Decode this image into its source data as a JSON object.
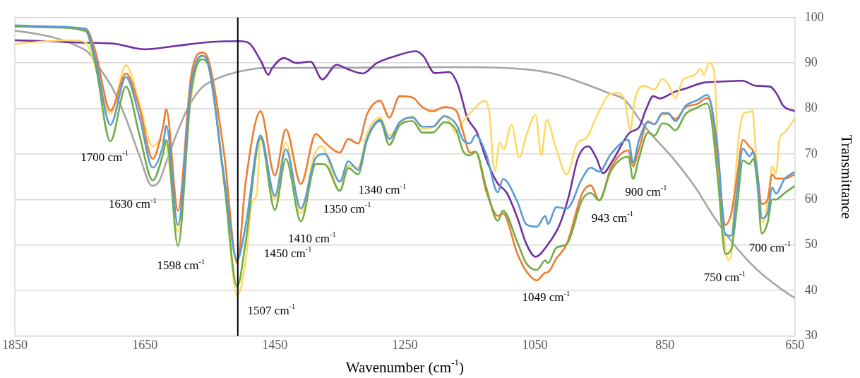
{
  "chart_data": {
    "type": "line",
    "xlabel": "Wavenumber (cm$^{-1}$)",
    "ylabel": "Transmittance",
    "xlim": [
      1850,
      650
    ],
    "xticks": [
      1850,
      1650,
      1450,
      1250,
      1050,
      850,
      650
    ],
    "ylim": [
      30,
      100
    ],
    "yticks": [
      30,
      40,
      50,
      60,
      70,
      80,
      90,
      100
    ],
    "grid": "y",
    "marker": "none",
    "line_style": "solid",
    "ref_lines": [
      {
        "axis": "x",
        "value": 1507,
        "color": "#000000"
      }
    ],
    "annotations": [
      "1700 cm$^{-1}$",
      "1630 cm$^{-1}$",
      "1598 cm$^{-1}$",
      "1507 cm$^{-1}$",
      "1450 cm$^{-1}$",
      "1410 cm$^{-1}$",
      "1350 cm$^{-1}$",
      "1340 cm$^{-1}$",
      "1049 cm$^{-1}$",
      "943 cm$^{-1}$",
      "900 cm$^{-1}$",
      "750 cm$^{-1}$",
      "700 cm$^{-1}$"
    ],
    "series": [
      {
        "color": "#a5a5a5",
        "x": [
          1850,
          1816,
          1780,
          1752,
          1737,
          1715,
          1698,
          1679,
          1658,
          1639,
          1628,
          1614,
          1600,
          1582,
          1563,
          1546,
          1528,
          1495,
          1470,
          1300,
          1171,
          1063,
          1017,
          973,
          937,
          912,
          887,
          872,
          836,
          800,
          782,
          746,
          710,
          674,
          650
        ],
        "values": [
          97.1,
          96.4,
          95.2,
          93.6,
          92.3,
          87.9,
          84,
          77.8,
          69.5,
          63,
          64,
          69.5,
          74.8,
          80.6,
          84.5,
          86.1,
          87.2,
          88.4,
          88.9,
          89,
          89.1,
          88.6,
          87.5,
          85.4,
          83.4,
          81.9,
          77.2,
          74.5,
          68.8,
          62,
          57.8,
          50.5,
          44.8,
          40.6,
          38.3
        ]
      },
      {
        "color": "#7030a0",
        "x": [
          1850,
          1800,
          1750,
          1700,
          1650,
          1600,
          1550,
          1505,
          1490,
          1471,
          1460,
          1455,
          1436,
          1417,
          1395,
          1377,
          1355,
          1337,
          1315,
          1293,
          1265,
          1233,
          1222,
          1204,
          1182,
          1169,
          1160,
          1155,
          1139,
          1125,
          1108,
          1093,
          1077,
          1063,
          1049,
          1031,
          1012,
          998,
          984,
          968,
          955,
          945,
          931,
          904,
          890,
          879,
          868,
          858,
          836,
          818,
          790,
          764,
          731,
          710,
          688,
          677,
          668,
          650
        ],
        "values": [
          95,
          94.8,
          94.5,
          94.3,
          93,
          93.8,
          94.6,
          94.8,
          94.4,
          90.3,
          87.4,
          88.7,
          91.1,
          90,
          90.3,
          86.4,
          89.6,
          88.6,
          87.7,
          90,
          91.5,
          92.6,
          91.6,
          87.8,
          88,
          85.4,
          81,
          78.3,
          74.7,
          68.9,
          63.7,
          61.4,
          56,
          50.2,
          47.4,
          49.9,
          54.4,
          60.6,
          69,
          71.7,
          69,
          65.8,
          68.4,
          74.7,
          75.8,
          79.8,
          82.7,
          82.2,
          83.6,
          84.4,
          85.7,
          85.9,
          86.1,
          85,
          84.8,
          83,
          80.6,
          79.4
        ]
      },
      {
        "color": "#ffd966",
        "x": [
          1850,
          1800,
          1760,
          1741,
          1730,
          1703,
          1679,
          1658,
          1638,
          1625,
          1617,
          1599,
          1579,
          1562,
          1553,
          1528,
          1508,
          1495,
          1485,
          1478,
          1472,
          1450,
          1433,
          1410,
          1390,
          1378,
          1350,
          1337,
          1322,
          1308,
          1288,
          1274,
          1258,
          1238,
          1223,
          1207,
          1189,
          1171,
          1160,
          1141,
          1128,
          1120,
          1112,
          1104,
          1098,
          1086,
          1074,
          1063,
          1049,
          1040,
          1032,
          1017,
          1001,
          985,
          970,
          955,
          936,
          925,
          912,
          903,
          897,
          883,
          866,
          854,
          845,
          834,
          823,
          804,
          795,
          790,
          782,
          774,
          768,
          760,
          753,
          748,
          742,
          735,
          728,
          720,
          715,
          712,
          704,
          699,
          690,
          685,
          679,
          674,
          666,
          650
        ],
        "values": [
          94.2,
          94.8,
          95,
          94.5,
          91,
          78.8,
          89.5,
          81,
          71.7,
          73,
          72,
          53,
          82,
          91.5,
          90.5,
          64,
          38.8,
          46.6,
          59.5,
          61,
          73.6,
          60,
          72.5,
          56.9,
          69.6,
          71.7,
          61.9,
          67.5,
          67,
          74.5,
          78,
          74.1,
          76.5,
          78.3,
          75.5,
          76,
          78.5,
          74.7,
          77.2,
          80.3,
          81.7,
          79,
          66.1,
          72.5,
          71,
          76.4,
          69.2,
          74.1,
          78.6,
          69.7,
          77.5,
          71,
          65.5,
          72.3,
          73.6,
          78.3,
          83,
          83.4,
          82,
          75.2,
          81.4,
          85,
          84.2,
          86.5,
          85.4,
          82.3,
          86.1,
          87.4,
          88.7,
          87.4,
          90,
          88,
          69,
          53.6,
          46.7,
          47.5,
          63.7,
          75.2,
          79,
          79.2,
          79.5,
          74,
          60.5,
          54.9,
          61.4,
          67.3,
          65.7,
          73.1,
          74.7,
          77.8
        ]
      },
      {
        "color": "#ed7d31",
        "x": [
          1850,
          1790,
          1741,
          1726,
          1703,
          1679,
          1658,
          1638,
          1622,
          1617,
          1599,
          1579,
          1562,
          1553,
          1528,
          1508,
          1495,
          1472,
          1450,
          1433,
          1410,
          1387,
          1373,
          1350,
          1337,
          1322,
          1308,
          1288,
          1274,
          1258,
          1238,
          1223,
          1207,
          1189,
          1171,
          1160,
          1150,
          1141,
          1125,
          1107,
          1099,
          1077,
          1063,
          1047,
          1034,
          1030,
          1017,
          1001,
          977,
          964,
          951,
          933,
          906,
          899,
          890,
          876,
          866,
          854,
          845,
          834,
          818,
          800,
          785,
          779,
          768,
          757,
          748,
          739,
          730,
          720,
          714,
          708,
          701,
          692,
          685,
          679,
          666,
          650
        ],
        "values": [
          98,
          null,
          97.5,
          92.5,
          79.5,
          87.7,
          80,
          68.9,
          76,
          79.8,
          57.5,
          87,
          92.3,
          91,
          70,
          46,
          63.7,
          79.4,
          65.3,
          75.4,
          63.4,
          74.4,
          72.5,
          70.3,
          73.3,
          72.3,
          78.8,
          81.7,
          78,
          82.7,
          82.4,
          80.3,
          79.4,
          80.3,
          79.5,
          74.7,
          70.3,
          70.5,
          61.9,
          56.4,
          56.9,
          48.1,
          44.2,
          42.2,
          43.9,
          44,
          47,
          50.2,
          61.4,
          63.1,
          59.8,
          66.9,
          70.8,
          67.3,
          71,
          77.2,
          76.5,
          78.8,
          78.8,
          77.7,
          80.3,
          81,
          82.3,
          81,
          68,
          54.4,
          56.9,
          65,
          73.1,
          71.6,
          70.5,
          66,
          59,
          60,
          65.5,
          64.6,
          64.6,
          65.5
        ]
      },
      {
        "color": "#70ad47",
        "x": [
          1850,
          1790,
          1741,
          1726,
          1703,
          1679,
          1658,
          1638,
          1622,
          1617,
          1599,
          1579,
          1562,
          1553,
          1528,
          1508,
          1495,
          1472,
          1450,
          1433,
          1410,
          1387,
          1373,
          1350,
          1337,
          1322,
          1308,
          1288,
          1274,
          1258,
          1238,
          1223,
          1207,
          1189,
          1171,
          1160,
          1150,
          1141,
          1125,
          1107,
          1099,
          1077,
          1063,
          1047,
          1034,
          1030,
          1017,
          1001,
          977,
          964,
          951,
          933,
          906,
          899,
          890,
          876,
          866,
          854,
          845,
          834,
          818,
          800,
          785,
          779,
          768,
          757,
          748,
          739,
          730,
          720,
          714,
          708,
          701,
          692,
          685,
          679,
          666,
          650
        ],
        "values": [
          98.1,
          97.8,
          97,
          89.7,
          72.8,
          84.8,
          74,
          64.2,
          70,
          73.1,
          49.8,
          83.4,
          90.8,
          89.7,
          63.7,
          40.8,
          50.6,
          73.6,
          57.7,
          68.9,
          55.2,
          67.8,
          67.7,
          61.9,
          66.9,
          65.5,
          73.1,
          77.2,
          72,
          76.3,
          77.2,
          74.7,
          74.7,
          77,
          75.2,
          70.5,
          69.7,
          70.5,
          62.7,
          55.3,
          57.5,
          50.6,
          45.9,
          44.5,
          46.6,
          46,
          49.4,
          50.2,
          60,
          61.4,
          59.8,
          66.3,
          69.4,
          64.5,
          69,
          74.7,
          74,
          76.7,
          76.5,
          75.2,
          78.8,
          80.2,
          81.1,
          78.3,
          63.7,
          48,
          49,
          58.4,
          68.6,
          67.8,
          68.9,
          63.7,
          52.5,
          54.9,
          60,
          60,
          61.4,
          63
        ]
      },
      {
        "color": "#5b9bd5",
        "x": [
          1850,
          1790,
          1741,
          1726,
          1703,
          1679,
          1658,
          1638,
          1622,
          1617,
          1599,
          1579,
          1562,
          1553,
          1528,
          1508,
          1495,
          1472,
          1450,
          1433,
          1410,
          1387,
          1373,
          1350,
          1337,
          1322,
          1308,
          1288,
          1274,
          1258,
          1238,
          1223,
          1207,
          1189,
          1171,
          1160,
          1150,
          1141,
          1125,
          1107,
          1099,
          1077,
          1063,
          1047,
          1034,
          1030,
          1017,
          1001,
          977,
          964,
          951,
          933,
          906,
          899,
          890,
          876,
          866,
          854,
          845,
          834,
          818,
          800,
          785,
          779,
          768,
          757,
          748,
          739,
          730,
          720,
          714,
          708,
          701,
          692,
          685,
          679,
          666,
          650
        ],
        "values": [
          98.3,
          98,
          97.5,
          91,
          76.4,
          86.9,
          78,
          67,
          72,
          76.2,
          54.4,
          85,
          91.6,
          90,
          65,
          46.7,
          54.2,
          74.1,
          60.8,
          71,
          58,
          69.2,
          70,
          63.9,
          68.4,
          66.5,
          73.5,
          77.5,
          73.3,
          77,
          78,
          76,
          76,
          78.3,
          76.5,
          73,
          72.3,
          74.1,
          70,
          61.6,
          64.5,
          59.5,
          54.5,
          54,
          56.4,
          54.6,
          58.3,
          58,
          64.7,
          67,
          66.1,
          70,
          73.1,
          68.1,
          73,
          77,
          76.5,
          79,
          79,
          77.2,
          80.6,
          81.8,
          83,
          81,
          70,
          52.2,
          52,
          62,
          71.2,
          69.5,
          70.5,
          66,
          55.9,
          57,
          62.6,
          61.3,
          64.5,
          66.1
        ]
      }
    ]
  }
}
